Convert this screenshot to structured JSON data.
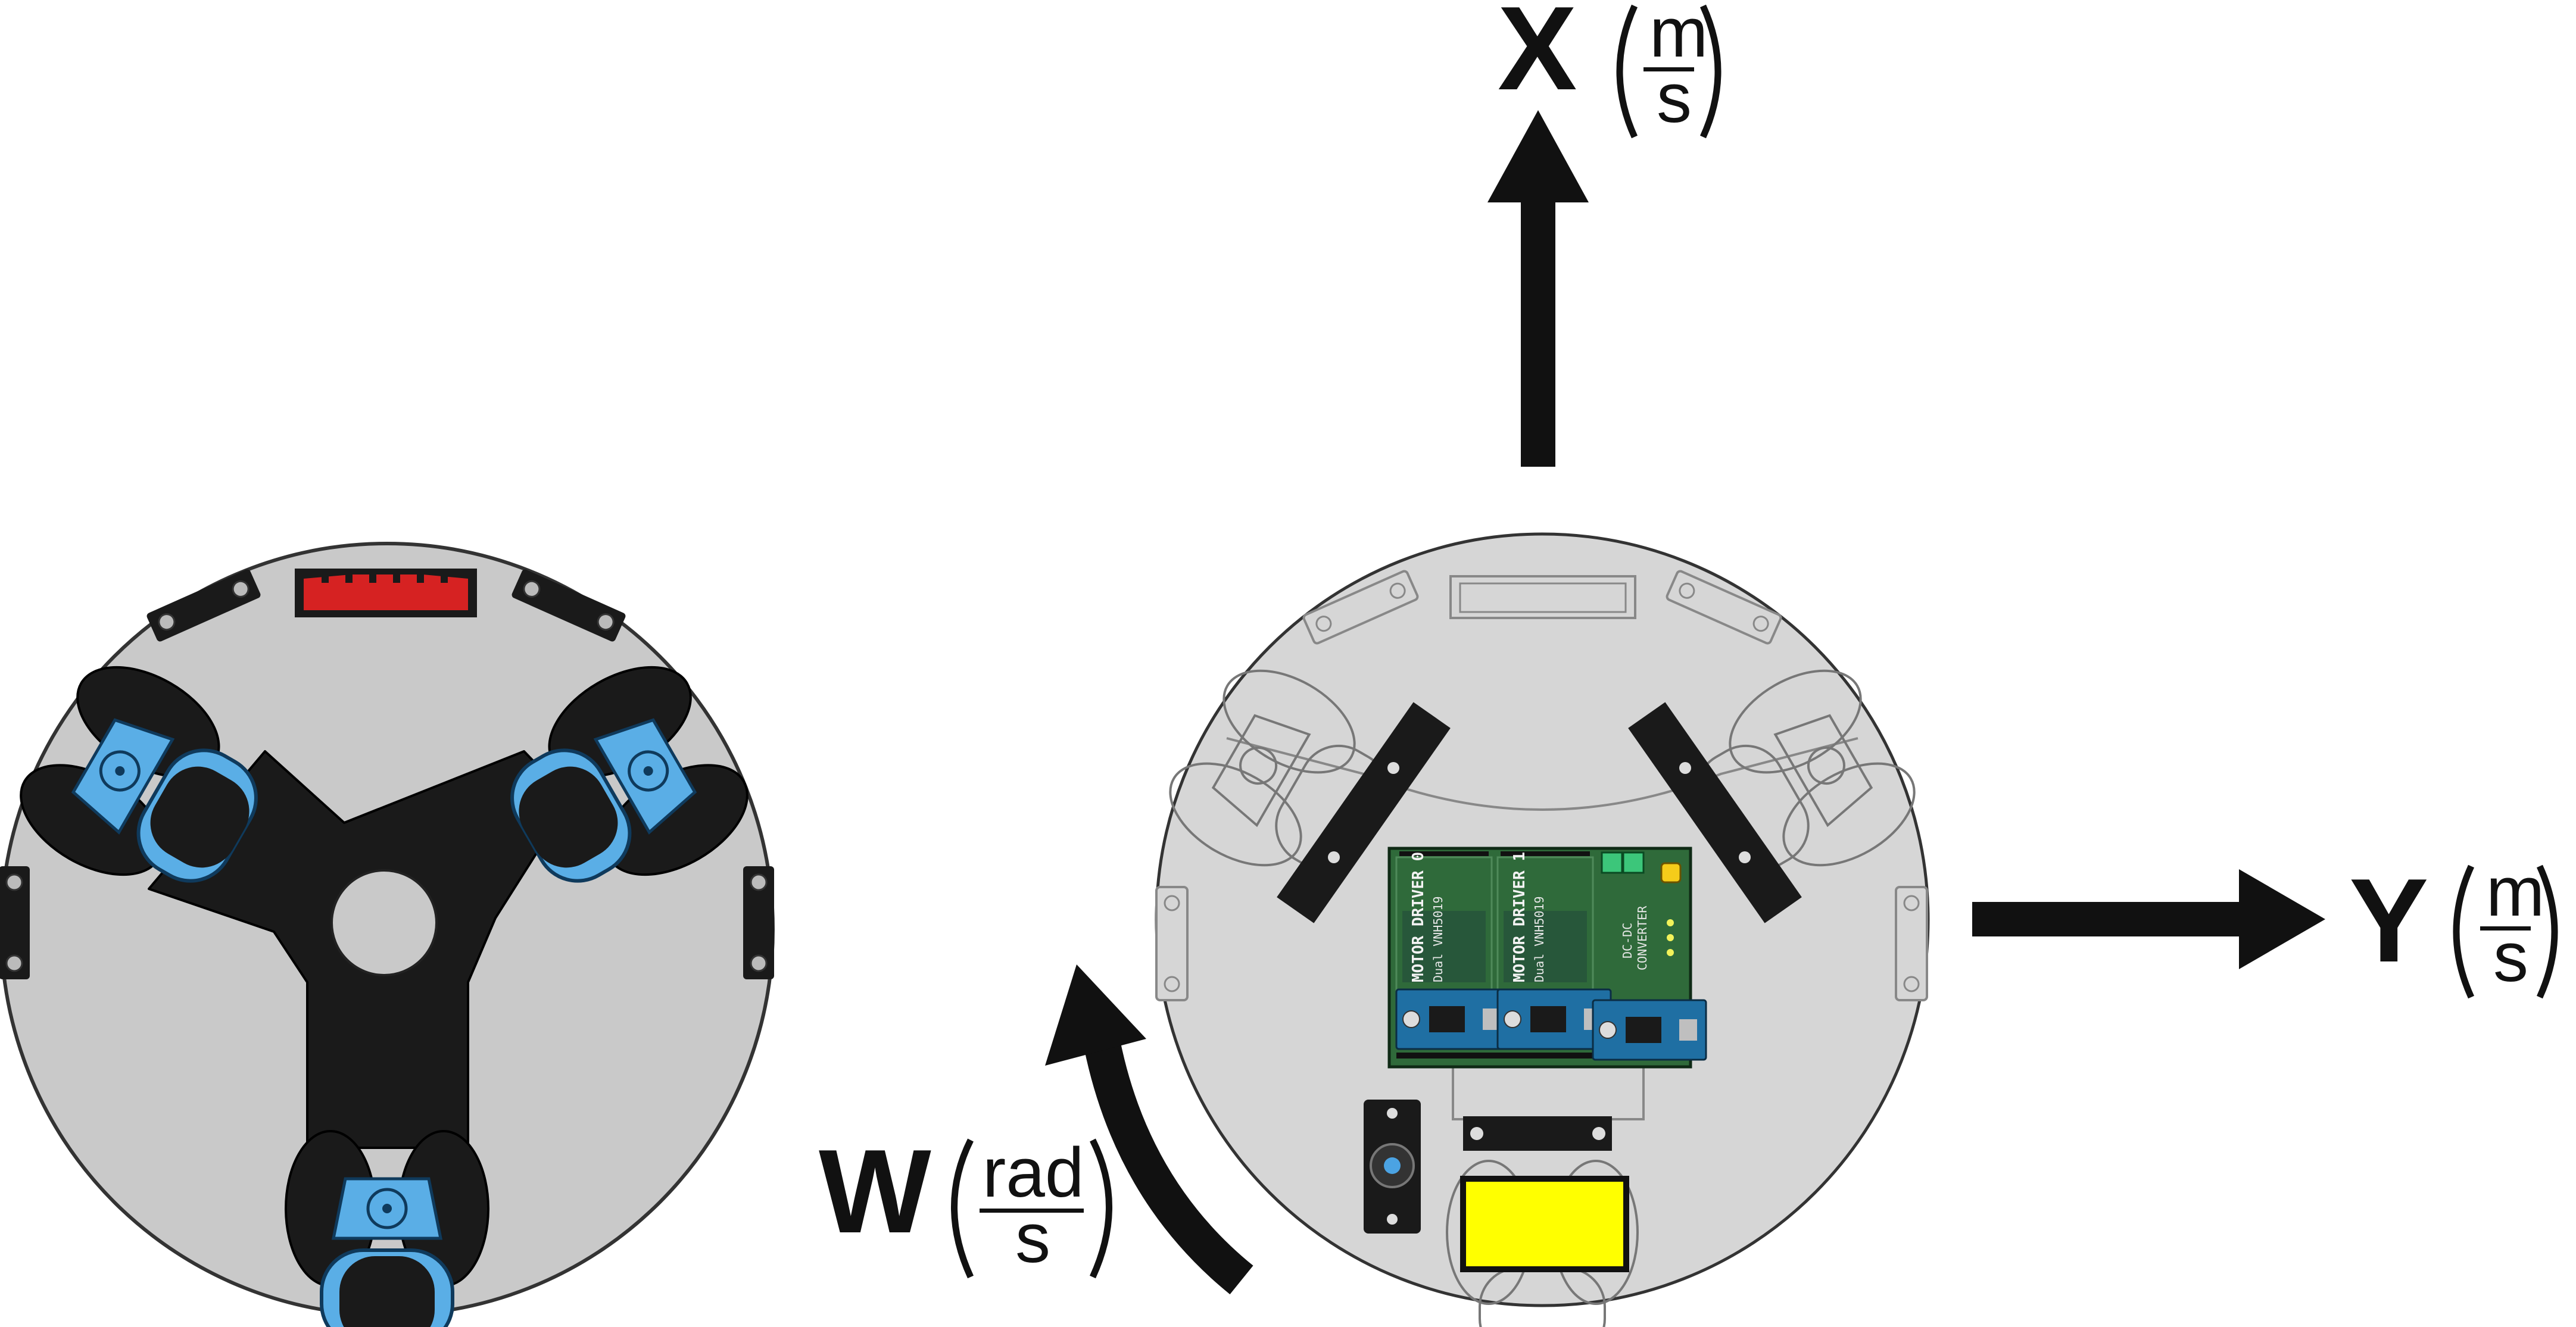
{
  "axes": {
    "x": {
      "letter": "X",
      "unit_num": "m",
      "unit_den": "s"
    },
    "y": {
      "letter": "Y",
      "unit_num": "m",
      "unit_den": "s"
    },
    "w": {
      "letter": "W",
      "unit_num": "rad",
      "unit_den": "s"
    }
  },
  "pcb": {
    "driver0_title": "MOTOR DRIVER 0",
    "driver0_sub": "Dual VNH5019",
    "driver1_title": "MOTOR DRIVER 1",
    "driver1_sub": "Dual VNH5019",
    "converter_line1": "DC-DC",
    "converter_line2": "CONVERTER"
  },
  "colors": {
    "chassis": "#c9c9c9",
    "chassis_top": "#d6d6d6",
    "wheel_blue": "#5aaee6",
    "pcb_green": "#2f6a3a",
    "connector_red": "#d62222",
    "battery_yellow": "#ffff00",
    "arrow": "#111111"
  }
}
